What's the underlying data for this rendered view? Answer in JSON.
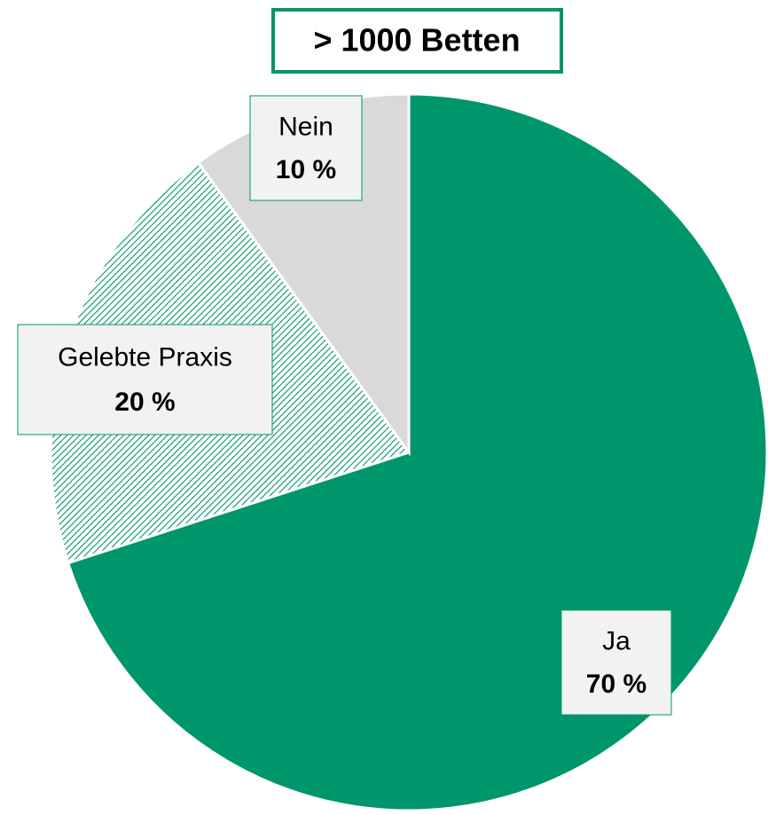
{
  "chart_data": {
    "type": "pie",
    "title": "> 1000 Betten",
    "categories": [
      "Ja",
      "Gelebte Praxis",
      "Nein"
    ],
    "values": [
      70,
      20,
      10
    ],
    "value_labels": [
      "70 %",
      "20 %",
      "10 %"
    ],
    "colors": [
      "#00966b",
      "#00966b",
      "#d9d9d9"
    ],
    "hatched": [
      false,
      true,
      false
    ]
  }
}
